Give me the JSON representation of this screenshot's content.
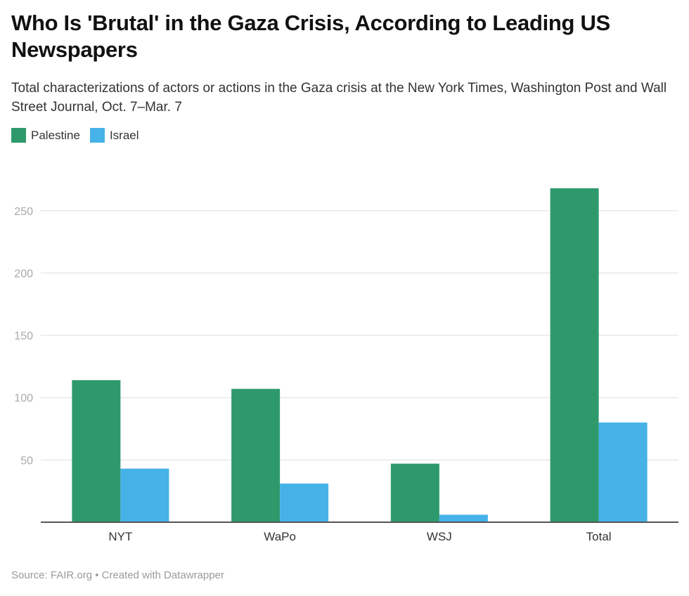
{
  "chart_data": {
    "type": "bar",
    "title": "Who Is 'Brutal' in the Gaza Crisis, According to Leading US Newspapers",
    "subtitle": "Total characterizations of actors or actions in the Gaza crisis at the New York Times, Washington Post and Wall Street Journal, Oct. 7–Mar. 7",
    "categories": [
      "NYT",
      "WaPo",
      "WSJ",
      "Total"
    ],
    "series": [
      {
        "name": "Palestine",
        "color": "#2e9a6c",
        "values": [
          114,
          107,
          47,
          268
        ]
      },
      {
        "name": "Israel",
        "color": "#46b2e8",
        "values": [
          43,
          31,
          6,
          80
        ]
      }
    ],
    "xlabel": "",
    "ylabel": "",
    "ylim": [
      0,
      270
    ],
    "yticks": [
      50,
      100,
      150,
      200,
      250
    ],
    "grid": true,
    "legend_position": "top-left",
    "source": "Source: FAIR.org • Created with Datawrapper"
  }
}
